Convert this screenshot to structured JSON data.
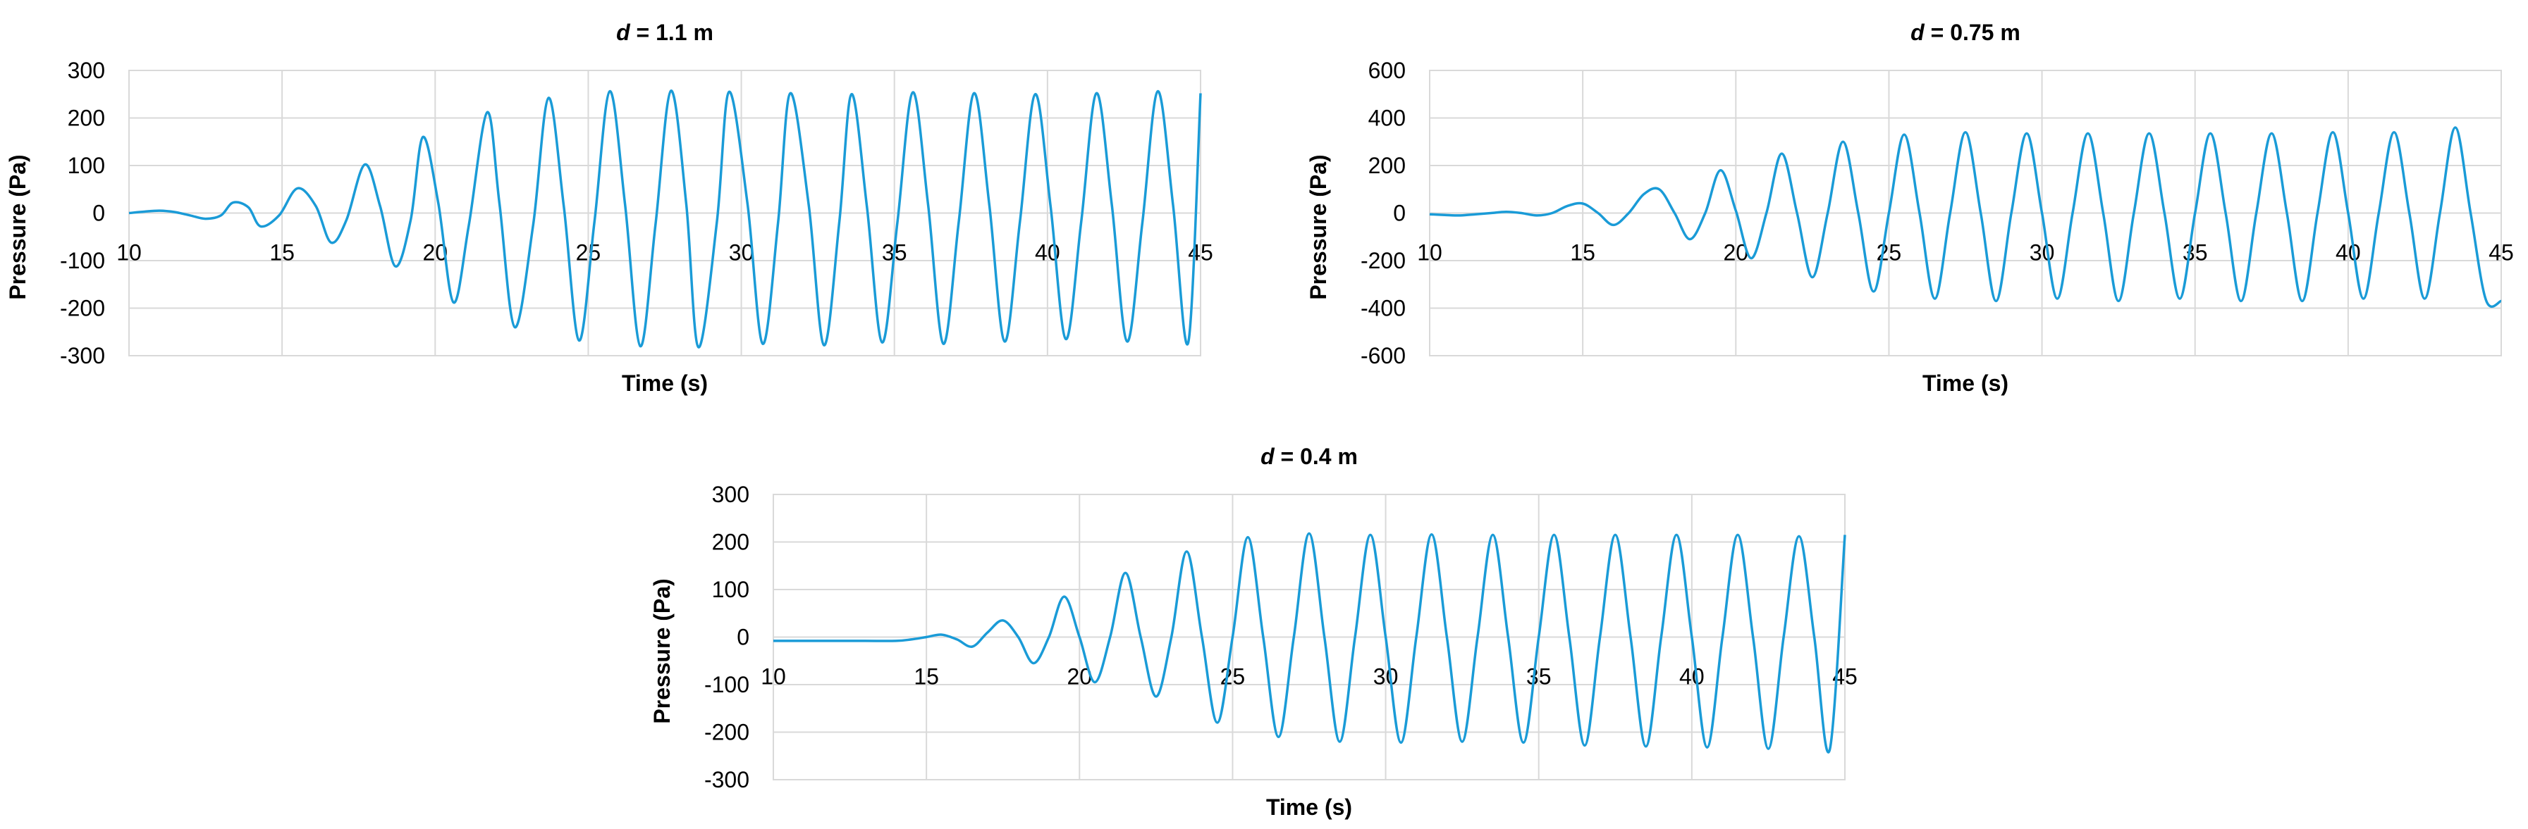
{
  "colors": {
    "series": "#1a9bd7",
    "grid": "#d9d9d9"
  },
  "chart_data": [
    {
      "type": "line",
      "title_var": "d",
      "title_rest": " = 1.1 m",
      "xlabel": "Time (s)",
      "ylabel": "Pressure (Pa)",
      "xlim": [
        10,
        45
      ],
      "ylim": [
        -300,
        300
      ],
      "xticks": [
        10,
        15,
        20,
        25,
        30,
        35,
        40,
        45
      ],
      "yticks": [
        300,
        200,
        100,
        0,
        -100,
        -200,
        -300
      ],
      "grid": true,
      "series": [
        {
          "x": [
            10,
            10.5,
            11,
            11.5,
            12,
            12.5,
            13,
            13.4,
            13.9,
            14.3,
            14.9,
            15.5,
            16.1,
            16.6,
            17.1,
            17.7,
            18.2,
            18.7,
            19.2,
            19.6,
            20.1,
            20.6,
            21.1,
            21.7,
            22.1,
            22.6,
            23.2,
            23.7,
            24.2,
            24.7,
            25.2,
            25.7,
            26.2,
            26.7,
            27.2,
            27.7,
            28.2,
            28.6,
            29.2,
            29.6,
            30.2,
            30.7,
            31.2,
            31.6,
            32.2,
            32.7,
            33.2,
            33.6,
            34.1,
            34.6,
            35.1,
            35.6,
            36.1,
            36.6,
            37.1,
            37.6,
            38.1,
            38.6,
            39.1,
            39.6,
            40.1,
            40.6,
            41.1,
            41.6,
            42.1,
            42.6,
            43.1,
            43.6,
            44.1,
            44.6,
            45
          ],
          "y": [
            0,
            3,
            5,
            2,
            -5,
            -12,
            -5,
            22,
            12,
            -28,
            -5,
            52,
            15,
            -62,
            -15,
            102,
            15,
            -112,
            -15,
            160,
            22,
            -188,
            -25,
            212,
            20,
            -240,
            -25,
            242,
            15,
            -268,
            -20,
            256,
            20,
            -280,
            -22,
            257,
            20,
            -282,
            -20,
            255,
            20,
            -275,
            -20,
            252,
            18,
            -278,
            -20,
            250,
            15,
            -272,
            -18,
            254,
            18,
            -275,
            -20,
            252,
            18,
            -270,
            -18,
            250,
            15,
            -265,
            -20,
            252,
            18,
            -270,
            -20,
            256,
            18,
            -272,
            252
          ]
        }
      ]
    },
    {
      "type": "line",
      "title_var": "d",
      "title_rest": " = 0.75 m",
      "xlabel": "Time (s)",
      "ylabel": "Pressure (Pa)",
      "xlim": [
        10,
        45
      ],
      "ylim": [
        -600,
        600
      ],
      "xticks": [
        10,
        15,
        20,
        25,
        30,
        35,
        40,
        45
      ],
      "yticks": [
        600,
        400,
        200,
        0,
        -200,
        -400,
        -600
      ],
      "grid": true,
      "series": [
        {
          "x": [
            10,
            10.5,
            11,
            11.5,
            12,
            12.5,
            13,
            13.5,
            14,
            14.5,
            15,
            15.5,
            16,
            16.5,
            17,
            17.5,
            18,
            18.5,
            19,
            19.5,
            20,
            20.5,
            21,
            21.5,
            22,
            22.5,
            23,
            23.5,
            24,
            24.5,
            25,
            25.5,
            26,
            26.5,
            27,
            27.5,
            28,
            28.5,
            29,
            29.5,
            30,
            30.5,
            31,
            31.5,
            32,
            32.5,
            33,
            33.5,
            34,
            34.5,
            35,
            35.5,
            36,
            36.5,
            37,
            37.5,
            38,
            38.5,
            39,
            39.5,
            40,
            40.5,
            41,
            41.5,
            42,
            42.5,
            43,
            43.5,
            44,
            44.5,
            45
          ],
          "y": [
            -5,
            -8,
            -10,
            -5,
            0,
            5,
            0,
            -10,
            0,
            30,
            40,
            0,
            -50,
            0,
            80,
            100,
            0,
            -110,
            0,
            180,
            10,
            -190,
            0,
            250,
            0,
            -270,
            0,
            300,
            0,
            -330,
            0,
            330,
            0,
            -360,
            0,
            340,
            0,
            -370,
            0,
            335,
            0,
            -360,
            0,
            335,
            0,
            -370,
            0,
            335,
            0,
            -360,
            0,
            335,
            0,
            -370,
            0,
            335,
            0,
            -370,
            0,
            340,
            0,
            -360,
            0,
            340,
            0,
            -360,
            0,
            360,
            0,
            -365,
            -370
          ]
        }
      ]
    },
    {
      "type": "line",
      "title_var": "d",
      "title_rest": " = 0.4 m",
      "xlabel": "Time (s)",
      "ylabel": "Pressure (Pa)",
      "xlim": [
        10,
        45
      ],
      "ylim": [
        -300,
        300
      ],
      "xticks": [
        10,
        15,
        20,
        25,
        30,
        35,
        40,
        45
      ],
      "yticks": [
        300,
        200,
        100,
        0,
        -100,
        -200,
        -300
      ],
      "grid": true,
      "series": [
        {
          "x": [
            10,
            11,
            12,
            13,
            14,
            14.5,
            15,
            15.5,
            16,
            16.5,
            17,
            17.5,
            18,
            18.5,
            19,
            19.5,
            20,
            20.5,
            21,
            21.5,
            22,
            22.5,
            23,
            23.5,
            24,
            24.5,
            25,
            25.5,
            26,
            26.5,
            27,
            27.5,
            28,
            28.5,
            29,
            29.5,
            30,
            30.5,
            31,
            31.5,
            32,
            32.5,
            33,
            33.5,
            34,
            34.5,
            35,
            35.5,
            36,
            36.5,
            37,
            37.5,
            38,
            38.5,
            39,
            39.5,
            40,
            40.5,
            41,
            41.5,
            42,
            42.5,
            43,
            43.5,
            44,
            44.5,
            45
          ],
          "y": [
            -8,
            -8,
            -8,
            -8,
            -8,
            -5,
            0,
            5,
            -5,
            -20,
            10,
            35,
            0,
            -55,
            0,
            85,
            0,
            -95,
            0,
            135,
            0,
            -125,
            0,
            180,
            0,
            -180,
            0,
            210,
            0,
            -210,
            0,
            218,
            0,
            -220,
            0,
            215,
            0,
            -222,
            0,
            216,
            0,
            -220,
            0,
            215,
            0,
            -222,
            0,
            215,
            0,
            -228,
            0,
            215,
            0,
            -230,
            0,
            215,
            0,
            -232,
            0,
            215,
            0,
            -235,
            0,
            212,
            0,
            -238,
            215
          ]
        }
      ]
    }
  ]
}
